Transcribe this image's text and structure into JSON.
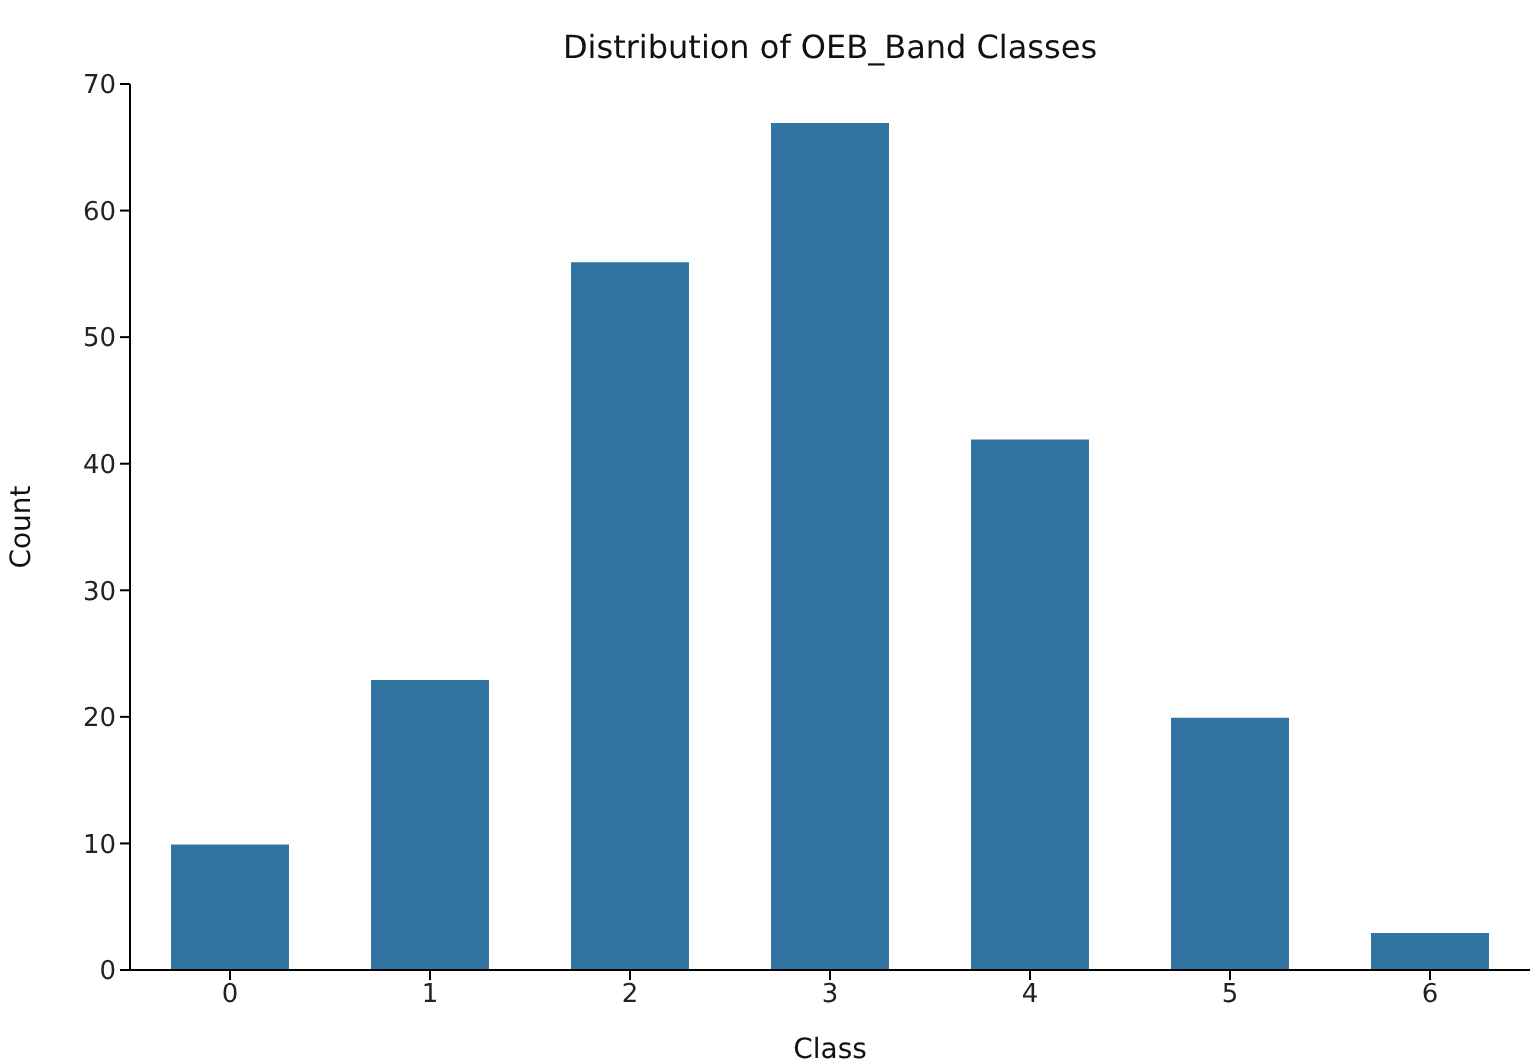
{
  "chart_data": {
    "type": "bar",
    "title": "Distribution of OEB_Band Classes",
    "xlabel": "Class",
    "ylabel": "Count",
    "categories": [
      "0",
      "1",
      "2",
      "3",
      "4",
      "5",
      "6"
    ],
    "values": [
      10,
      23,
      56,
      67,
      42,
      20,
      3
    ],
    "color": "#3274a1",
    "ylim": [
      0,
      70
    ],
    "yticks": [
      0,
      10,
      20,
      30,
      40,
      50,
      60,
      70
    ],
    "grid": false
  }
}
